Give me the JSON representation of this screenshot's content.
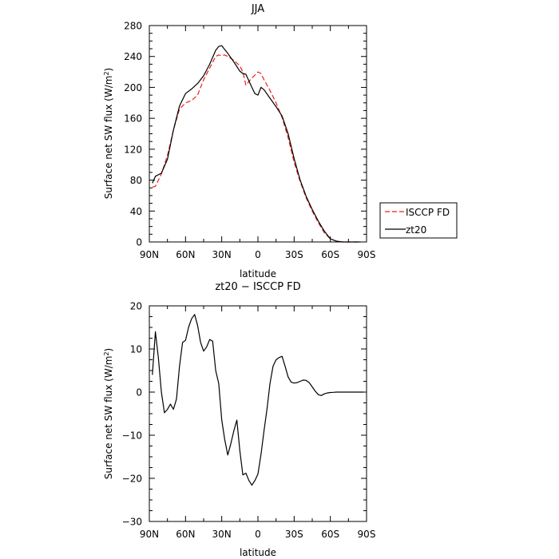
{
  "chart_data": [
    {
      "type": "line",
      "title": "JJA",
      "xlabel": "latitude",
      "ylabel": "Surface net SW flux (W/m²)",
      "ylabel_parts": [
        "Surface net SW flux (W/m",
        "2",
        ")"
      ],
      "xlim": [
        90,
        -90
      ],
      "ylim": [
        0,
        280
      ],
      "x_ticks": [
        90,
        60,
        30,
        0,
        -30,
        -60,
        -90
      ],
      "x_tick_labels": [
        "90N",
        "60N",
        "30N",
        "0",
        "30S",
        "60S",
        "90S"
      ],
      "y_ticks": [
        0,
        40,
        80,
        120,
        160,
        200,
        240,
        280
      ],
      "y_tick_labels": [
        "0",
        "40",
        "80",
        "120",
        "160",
        "200",
        "240",
        "280"
      ],
      "grid": false,
      "legend": "outside-right",
      "series": [
        {
          "name": "ISCCP FD",
          "color": "#e8201c",
          "dash": "dashed",
          "x": [
            87.5,
            85,
            80,
            75,
            70,
            65,
            60,
            55,
            50,
            45,
            40,
            35,
            32.5,
            30,
            27.5,
            25,
            20,
            15,
            12.5,
            10,
            5,
            0,
            -2.5,
            -5,
            -10,
            -15,
            -20,
            -25,
            -30,
            -35,
            -40,
            -45,
            -50,
            -55,
            -60,
            -65,
            -70,
            -75,
            -80,
            -85
          ],
          "y": [
            71,
            72,
            88,
            112,
            145,
            172,
            180,
            183,
            190,
            210,
            225,
            240,
            242,
            241,
            242,
            240,
            235,
            228,
            220,
            203,
            212,
            220,
            218,
            210,
            196,
            180,
            161,
            135,
            103,
            78,
            57,
            40,
            25,
            12,
            4,
            1,
            0,
            0,
            0,
            0
          ]
        },
        {
          "name": "zt20",
          "color": "#000000",
          "dash": "solid",
          "x": [
            87.5,
            85,
            80,
            75,
            70,
            65,
            60,
            55,
            50,
            45,
            40,
            35,
            32.5,
            30,
            27.5,
            25,
            20,
            15,
            12.5,
            10,
            5,
            2.5,
            0,
            -2.5,
            -5,
            -10,
            -15,
            -20,
            -25,
            -30,
            -35,
            -40,
            -45,
            -50,
            -55,
            -60,
            -65,
            -70,
            -75,
            -80,
            -85
          ],
          "y": [
            76,
            85,
            89,
            107,
            145,
            176,
            192,
            198,
            205,
            215,
            230,
            248,
            253,
            254,
            249,
            244,
            233,
            221,
            218,
            217,
            200,
            192,
            190,
            200,
            197,
            186,
            175,
            163,
            140,
            108,
            80,
            59,
            42,
            27,
            14,
            4,
            1,
            0,
            0,
            0,
            0
          ]
        }
      ]
    },
    {
      "type": "line",
      "title": "zt20 − ISCCP FD",
      "xlabel": "latitude",
      "ylabel": "Surface net SW flux (W/m²)",
      "ylabel_parts": [
        "Surface net SW flux (W/m",
        "2",
        ")"
      ],
      "xlim": [
        90,
        -90
      ],
      "ylim": [
        -30,
        20
      ],
      "x_ticks": [
        90,
        60,
        30,
        0,
        -30,
        -60,
        -90
      ],
      "x_tick_labels": [
        "90N",
        "60N",
        "30N",
        "0",
        "30S",
        "60S",
        "90S"
      ],
      "y_ticks": [
        -30,
        -20,
        -10,
        0,
        10,
        20
      ],
      "y_tick_labels": [
        "−30",
        "−20",
        "−10",
        "0",
        "10",
        "20"
      ],
      "grid": false,
      "series": [
        {
          "color": "#000000",
          "dash": "solid",
          "x": [
            87.5,
            85,
            82.5,
            80,
            77.5,
            75,
            72.5,
            70,
            67.5,
            65,
            62.5,
            60,
            57.5,
            55,
            52.5,
            50,
            47.5,
            45,
            42.5,
            40,
            37.5,
            35,
            32.5,
            30,
            27.5,
            25,
            22.5,
            20,
            17.5,
            15,
            12.5,
            10,
            7.5,
            5,
            2.5,
            0,
            -2.5,
            -5,
            -7.5,
            -10,
            -12.5,
            -15,
            -17.5,
            -20,
            -22.5,
            -25,
            -27.5,
            -30,
            -32.5,
            -35,
            -37.5,
            -40,
            -42.5,
            -45,
            -47.5,
            -50,
            -52.5,
            -55,
            -57.5,
            -60,
            -62.5,
            -65,
            -67.5,
            -70,
            -75,
            -80,
            -85,
            -87.5
          ],
          "y": [
            4,
            14,
            8,
            0,
            -4.8,
            -4,
            -2.8,
            -4,
            -1.6,
            6,
            11.5,
            12,
            15,
            17,
            18,
            15.5,
            11.5,
            9.5,
            10.5,
            12.2,
            11.8,
            5,
            2,
            -6.5,
            -11,
            -14.6,
            -12,
            -9,
            -6.5,
            -13.5,
            -19.2,
            -18.8,
            -20.5,
            -21.6,
            -20.5,
            -19,
            -14.5,
            -9,
            -4,
            2,
            6,
            7.5,
            8,
            8.3,
            6,
            3.5,
            2.3,
            2.1,
            2.2,
            2.5,
            2.8,
            2.7,
            2.2,
            1.2,
            0.2,
            -0.6,
            -0.8,
            -0.4,
            -0.2,
            -0.1,
            -0.05,
            0,
            0,
            0,
            0,
            0,
            0,
            0
          ]
        }
      ]
    }
  ]
}
